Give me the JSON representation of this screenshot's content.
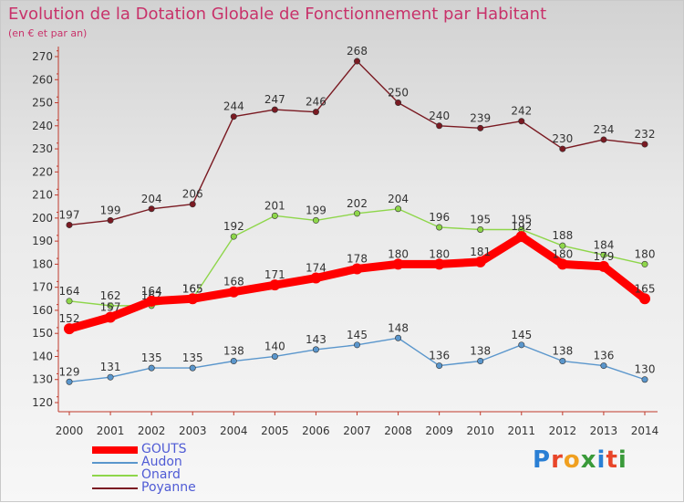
{
  "title": "Evolution de la Dotation Globale de Fonctionnement par Habitant",
  "subtitle": "(en € et par an)",
  "logo": {
    "letters": [
      "P",
      "r",
      "o",
      "x",
      "i",
      "t",
      "i"
    ],
    "colors": [
      "#2a7fd4",
      "#e8462a",
      "#f0a020",
      "#3a9a3a",
      "#2a7fd4",
      "#e8462a",
      "#3a9a3a"
    ]
  },
  "chart_data": {
    "type": "line",
    "title": "Evolution de la Dotation Globale de Fonctionnement par Habitant",
    "subtitle": "(en € et par an)",
    "x": [
      "2000",
      "2001",
      "2002",
      "2003",
      "2004",
      "2005",
      "2006",
      "2007",
      "2008",
      "2009",
      "2010",
      "2011",
      "2012",
      "2013",
      "2014"
    ],
    "ylim": [
      120,
      270
    ],
    "yticks": [
      120,
      130,
      140,
      150,
      160,
      170,
      180,
      190,
      200,
      210,
      220,
      230,
      240,
      250,
      260,
      270
    ],
    "grid": false,
    "legend_position": "bottom-left",
    "series": [
      {
        "name": "Poyanne",
        "color": "#7a1a22",
        "values": [
          197,
          199,
          204,
          206,
          244,
          247,
          246,
          268,
          250,
          240,
          239,
          242,
          230,
          234,
          232
        ]
      },
      {
        "name": "Onard",
        "color": "#8ed64a",
        "values": [
          164,
          162,
          162,
          165,
          192,
          201,
          199,
          202,
          204,
          196,
          195,
          195,
          188,
          184,
          180
        ]
      },
      {
        "name": "Audon",
        "color": "#5a96cc",
        "values": [
          129,
          131,
          135,
          135,
          138,
          140,
          143,
          145,
          148,
          136,
          138,
          145,
          138,
          136,
          130
        ]
      },
      {
        "name": "GOUTS",
        "color": "#ff0000",
        "values": [
          152,
          157,
          164,
          165,
          168,
          171,
          174,
          178,
          180,
          180,
          181,
          192,
          180,
          179,
          165
        ]
      }
    ]
  }
}
